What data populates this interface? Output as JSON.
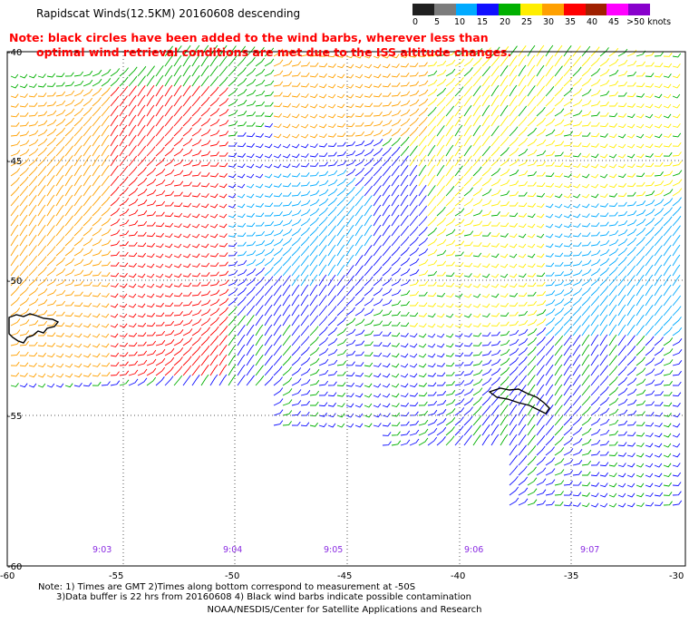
{
  "title": "Rapidscat Winds(12.5KM) 20160608 descending",
  "note_line1": "Note: black circles have been added to the wind barbs, wherever less than",
  "note_line2": "optimal wind retrieval conditions are met due to the ISS altitude changes.",
  "color_scale": {
    "labels": [
      "0",
      "5",
      "10",
      "15",
      "20",
      "25",
      "30",
      "35",
      "40",
      "45",
      ">50 knots"
    ],
    "colors": [
      "#202020",
      "#7c7c7c",
      "#00aaff",
      "#1010ff",
      "#00b000",
      "#ffee00",
      "#ffa000",
      "#ff0000",
      "#a02000",
      "#ff00ff",
      "#8800cc"
    ]
  },
  "latitude_labels": [
    "-40",
    "-45",
    "-50",
    "-55",
    "-60"
  ],
  "longitude_labels": [
    "-60",
    "-55",
    "-50",
    "-45",
    "-40",
    "-35",
    "-30"
  ],
  "time_labels": [
    "9:03",
    "9:04",
    "9:05",
    "9:06",
    "9:07"
  ],
  "footer": {
    "line1": "Note: 1) Times are GMT 2)Times along bottom correspond to measurement at -50S",
    "line2": "3)Data buffer is 22 hrs from 20160608 4) Black wind barbs indicate possible contamination",
    "line3": "NOAA/NESDIS/Center for Satellite Applications and Research"
  }
}
